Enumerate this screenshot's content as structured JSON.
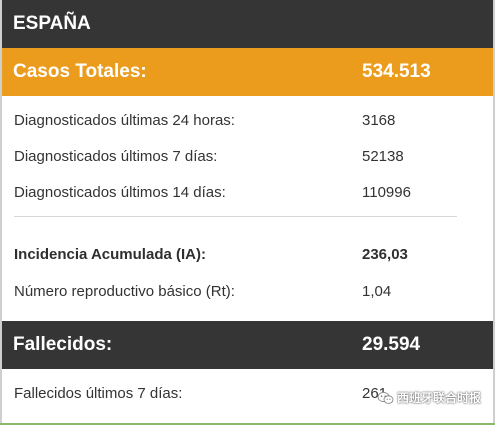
{
  "header": {
    "title": "ESPAÑA"
  },
  "totals": {
    "label": "Casos Totales:",
    "value": "534.513"
  },
  "rows_cases": [
    {
      "label": "Diagnosticados últimas 24 horas:",
      "value": "3168"
    },
    {
      "label": "Diagnosticados últimos 7 días:",
      "value": "52138"
    },
    {
      "label": "Diagnosticados últimos 14 días:",
      "value": "110996"
    }
  ],
  "rows_indicators": [
    {
      "label": "Incidencia Acumulada (IA):",
      "value": "236,03"
    },
    {
      "label": "Número reproductivo básico (Rt):",
      "value": "1,04"
    }
  ],
  "deaths": {
    "label": "Fallecidos:",
    "value": "29.594"
  },
  "rows_deaths": [
    {
      "label": "Fallecidos últimos 7 días:",
      "value": "261"
    }
  ],
  "watermark": {
    "text": "西班牙联合时报",
    "icon": "wechat-icon"
  },
  "colors": {
    "header_bg": "#353535",
    "accent": "#ec9c1d",
    "text": "#333333"
  }
}
